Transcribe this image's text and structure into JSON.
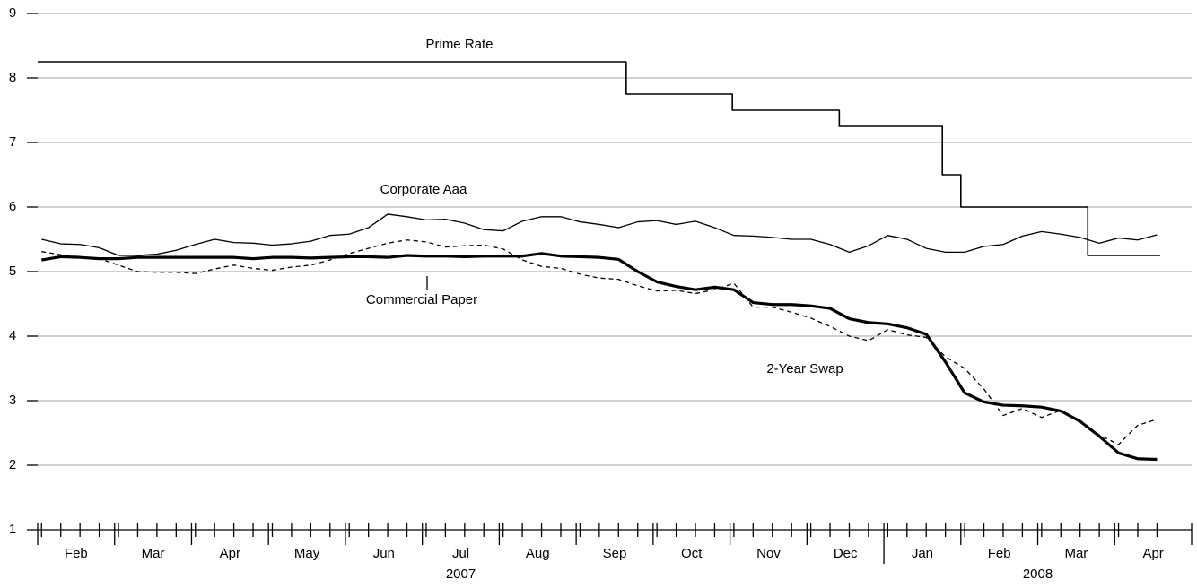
{
  "chart_data": {
    "type": "line",
    "categories": [
      "Feb",
      "Mar",
      "Apr",
      "May",
      "Jun",
      "Jul",
      "Aug",
      "Sep",
      "Oct",
      "Nov",
      "Dec",
      "Jan",
      "Feb",
      "Mar",
      "Apr"
    ],
    "years": [
      {
        "label": "2007",
        "start": 0,
        "end": 11
      },
      {
        "label": "2008",
        "start": 11,
        "end": 15
      }
    ],
    "xlim": [
      0,
      15
    ],
    "xticks": [
      0,
      1,
      2,
      3,
      4,
      5,
      6,
      7,
      8,
      9,
      10,
      11,
      12,
      13,
      14,
      15
    ],
    "ylim": [
      1,
      9
    ],
    "yticks": [
      1,
      2,
      3,
      4,
      5,
      6,
      7,
      8,
      9
    ],
    "grid": true,
    "x": [
      0.05,
      0.3,
      0.55,
      0.8,
      1.05,
      1.3,
      1.55,
      1.8,
      2.05,
      2.3,
      2.55,
      2.8,
      3.05,
      3.3,
      3.55,
      3.8,
      4.05,
      4.3,
      4.55,
      4.8,
      5.05,
      5.3,
      5.55,
      5.8,
      6.05,
      6.3,
      6.55,
      6.8,
      7.05,
      7.3,
      7.55,
      7.8,
      8.05,
      8.3,
      8.55,
      8.8,
      9.05,
      9.3,
      9.55,
      9.8,
      10.05,
      10.3,
      10.55,
      10.8,
      11.05,
      11.3,
      11.55,
      11.8,
      12.05,
      12.3,
      12.55,
      12.8,
      13.05,
      13.3,
      13.55,
      13.8,
      14.05,
      14.3,
      14.55
    ],
    "series": [
      {
        "name": "Prime Rate",
        "color": "#000000",
        "line_width": 1.6,
        "step": true,
        "x": [
          0,
          7.65,
          9.03,
          10.42,
          11.76,
          12.0,
          13.65,
          14.59
        ],
        "values": [
          8.25,
          7.75,
          7.5,
          7.25,
          6.5,
          6.0,
          5.25,
          5.25
        ]
      },
      {
        "name": "Corporate Aaa",
        "color": "#000000",
        "line_width": 1.3,
        "values": [
          5.5,
          5.43,
          5.42,
          5.37,
          5.25,
          5.25,
          5.27,
          5.33,
          5.42,
          5.5,
          5.45,
          5.44,
          5.41,
          5.43,
          5.47,
          5.56,
          5.58,
          5.68,
          5.89,
          5.85,
          5.8,
          5.81,
          5.75,
          5.65,
          5.63,
          5.78,
          5.85,
          5.85,
          5.77,
          5.73,
          5.68,
          5.77,
          5.79,
          5.73,
          5.78,
          5.68,
          5.56,
          5.55,
          5.53,
          5.5,
          5.5,
          5.42,
          5.3,
          5.4,
          5.56,
          5.5,
          5.36,
          5.3,
          5.3,
          5.39,
          5.42,
          5.55,
          5.62,
          5.58,
          5.53,
          5.44,
          5.52,
          5.49,
          5.57
        ]
      },
      {
        "name": "Commercial Paper",
        "color": "#000000",
        "line_width": 1.3,
        "dashed": true,
        "values": [
          5.31,
          5.26,
          5.23,
          5.2,
          5.1,
          5.0,
          4.99,
          4.99,
          4.97,
          5.04,
          5.1,
          5.05,
          5.02,
          5.07,
          5.1,
          5.18,
          5.28,
          5.36,
          5.44,
          5.49,
          5.46,
          5.38,
          5.4,
          5.41,
          5.35,
          5.18,
          5.08,
          5.05,
          4.96,
          4.9,
          4.88,
          4.78,
          4.7,
          4.71,
          4.66,
          4.72,
          4.82,
          4.45,
          4.45,
          4.37,
          4.28,
          4.15,
          4.0,
          3.93,
          4.1,
          4.02,
          3.98,
          3.68,
          3.5,
          3.18,
          2.77,
          2.88,
          2.74,
          2.85,
          2.68,
          2.47,
          2.32,
          2.62,
          2.71
        ]
      },
      {
        "name": "2-Year Swap",
        "color": "#000000",
        "line_width": 3.2,
        "values": [
          5.18,
          5.23,
          5.22,
          5.2,
          5.2,
          5.22,
          5.22,
          5.22,
          5.22,
          5.22,
          5.22,
          5.2,
          5.22,
          5.22,
          5.21,
          5.22,
          5.23,
          5.23,
          5.22,
          5.25,
          5.24,
          5.24,
          5.23,
          5.24,
          5.24,
          5.24,
          5.28,
          5.24,
          5.23,
          5.22,
          5.19,
          5.0,
          4.84,
          4.77,
          4.72,
          4.76,
          4.72,
          4.52,
          4.49,
          4.49,
          4.47,
          4.43,
          4.27,
          4.21,
          4.19,
          4.13,
          4.03,
          3.6,
          3.12,
          2.98,
          2.93,
          2.92,
          2.9,
          2.84,
          2.68,
          2.45,
          2.19,
          2.1,
          2.09
        ]
      }
    ]
  }
}
